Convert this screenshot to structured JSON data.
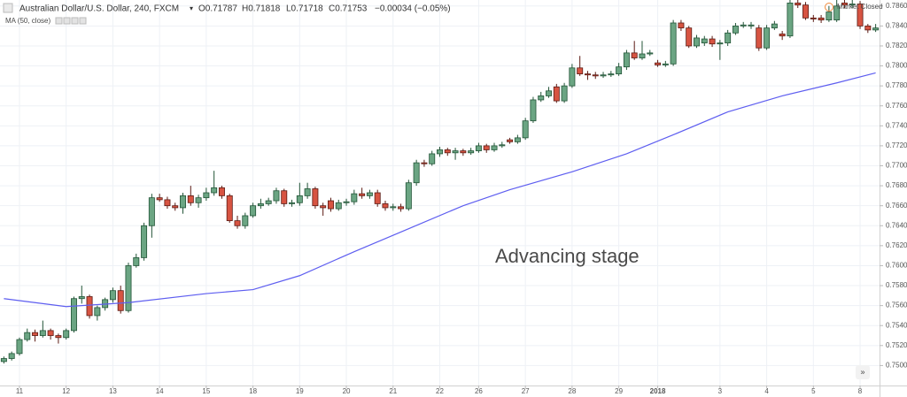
{
  "chart_data": {
    "type": "candlestick",
    "header": {
      "symbol": "Australian Dollar/U.S. Dollar, 240, FXCM",
      "open": "O0.71787",
      "high": "H0.71818",
      "low": "L0.71718",
      "close": "C0.71753",
      "change": "−0.00034 (−0.05%)",
      "indicator": "MA (50, close)",
      "status": "Market Closed"
    },
    "annotation": "Advancing stage",
    "up_color": "#6ba583",
    "up_border": "#225437",
    "down_color": "#d75442",
    "down_border": "#5b1a13",
    "categories": [
      null,
      null,
      "11",
      null,
      null,
      null,
      null,
      null,
      "12",
      null,
      null,
      null,
      null,
      null,
      "13",
      null,
      null,
      null,
      null,
      null,
      "14",
      null,
      null,
      null,
      null,
      null,
      "15",
      null,
      null,
      null,
      null,
      null,
      "18",
      null,
      null,
      null,
      null,
      null,
      "19",
      null,
      null,
      null,
      null,
      null,
      "20",
      null,
      null,
      null,
      null,
      null,
      "21",
      null,
      null,
      null,
      null,
      null,
      "22",
      null,
      null,
      null,
      null,
      "26",
      null,
      null,
      null,
      null,
      null,
      "27",
      null,
      null,
      null,
      null,
      null,
      "28",
      null,
      null,
      null,
      null,
      null,
      "29",
      null,
      null,
      null,
      null,
      "2018",
      null,
      null,
      null,
      null,
      null,
      null,
      null,
      "3",
      null,
      null,
      null,
      null,
      null,
      "4",
      null,
      null,
      null,
      null,
      null,
      "5",
      null,
      null,
      null,
      null,
      null,
      "8",
      null,
      null
    ],
    "open": [
      0.7504,
      0.7507,
      0.7512,
      0.7526,
      0.7533,
      0.753,
      0.7535,
      0.753,
      0.7528,
      0.7535,
      0.7567,
      0.7569,
      0.755,
      0.7558,
      0.7566,
      0.7575,
      0.7555,
      0.76,
      0.7608,
      0.764,
      0.7668,
      0.7666,
      0.766,
      0.7658,
      0.767,
      0.7663,
      0.7668,
      0.7673,
      0.7678,
      0.767,
      0.7645,
      0.764,
      0.765,
      0.766,
      0.7662,
      0.7665,
      0.7675,
      0.7662,
      0.7663,
      0.767,
      0.7677,
      0.766,
      0.7665,
      0.7657,
      0.7663,
      0.7664,
      0.7672,
      0.767,
      0.7673,
      0.7662,
      0.7658,
      0.7659,
      0.7657,
      0.7683,
      0.7703,
      0.7702,
      0.7712,
      0.7716,
      0.7713,
      0.7715,
      0.7713,
      0.7715,
      0.772,
      0.7716,
      0.772,
      0.7726,
      0.7724,
      0.7728,
      0.7745,
      0.7766,
      0.777,
      0.7779,
      0.7765,
      0.778,
      0.7798,
      0.7792,
      0.7791,
      0.779,
      0.7791,
      0.7792,
      0.7799,
      0.7813,
      0.7808,
      0.7812,
      0.7803,
      0.7801,
      0.7802,
      0.7843,
      0.7838,
      0.782,
      0.7823,
      0.7827,
      0.7822,
      0.7823,
      0.7833,
      0.784,
      0.784,
      0.7838,
      0.7818,
      0.7838,
      0.7832,
      0.783,
      0.7863,
      0.7861,
      0.7848,
      0.7848,
      0.7846,
      0.7846,
      0.7863,
      0.7861,
      0.7862,
      0.784,
      0.7836
    ],
    "high": [
      0.7509,
      0.7514,
      0.7528,
      0.7537,
      0.7536,
      0.7545,
      0.7537,
      0.7532,
      0.7537,
      0.7569,
      0.758,
      0.7571,
      0.756,
      0.7568,
      0.7578,
      0.758,
      0.7603,
      0.7612,
      0.7643,
      0.7672,
      0.7672,
      0.7669,
      0.7663,
      0.7673,
      0.768,
      0.7671,
      0.7678,
      0.7695,
      0.768,
      0.7672,
      0.765,
      0.7653,
      0.7663,
      0.7667,
      0.7668,
      0.7678,
      0.7677,
      0.7666,
      0.7683,
      0.7683,
      0.7679,
      0.7663,
      0.7668,
      0.7666,
      0.7667,
      0.7676,
      0.7678,
      0.7676,
      0.7676,
      0.7665,
      0.7662,
      0.7662,
      0.7686,
      0.7706,
      0.7706,
      0.7715,
      0.7719,
      0.7718,
      0.7718,
      0.7717,
      0.7718,
      0.7723,
      0.7722,
      0.7723,
      0.7724,
      0.7728,
      0.7731,
      0.7748,
      0.7769,
      0.7774,
      0.7779,
      0.7782,
      0.7783,
      0.7802,
      0.781,
      0.7795,
      0.7794,
      0.7794,
      0.7795,
      0.7803,
      0.7816,
      0.7825,
      0.7825,
      0.7816,
      0.7806,
      0.7805,
      0.7846,
      0.7846,
      0.784,
      0.7831,
      0.783,
      0.783,
      0.7826,
      0.7836,
      0.7843,
      0.7844,
      0.7844,
      0.7841,
      0.7841,
      0.7845,
      0.7835,
      0.7866,
      0.7866,
      0.7864,
      0.7851,
      0.7851,
      0.786,
      0.7866,
      0.7872,
      0.7866,
      0.7865,
      0.7842,
      0.7842
    ],
    "low": [
      0.7502,
      0.7505,
      0.751,
      0.7524,
      0.7524,
      0.7528,
      0.7526,
      0.7522,
      0.7526,
      0.7533,
      0.7562,
      0.7547,
      0.7545,
      0.7555,
      0.7563,
      0.7552,
      0.7553,
      0.7598,
      0.7605,
      0.7628,
      0.7664,
      0.7657,
      0.7655,
      0.7652,
      0.766,
      0.7658,
      0.7665,
      0.767,
      0.7667,
      0.7643,
      0.7637,
      0.7637,
      0.7648,
      0.7657,
      0.766,
      0.7662,
      0.7659,
      0.7659,
      0.766,
      0.7667,
      0.7657,
      0.765,
      0.7654,
      0.7655,
      0.766,
      0.7661,
      0.7667,
      0.7667,
      0.7659,
      0.7655,
      0.7655,
      0.7654,
      0.7655,
      0.768,
      0.7699,
      0.77,
      0.7709,
      0.771,
      0.7706,
      0.771,
      0.7711,
      0.7713,
      0.7713,
      0.7714,
      0.7718,
      0.7722,
      0.7722,
      0.7726,
      0.7743,
      0.7764,
      0.7768,
      0.7763,
      0.7763,
      0.7778,
      0.779,
      0.7786,
      0.7787,
      0.7788,
      0.7789,
      0.779,
      0.7796,
      0.7806,
      0.7806,
      0.781,
      0.7799,
      0.7799,
      0.78,
      0.7835,
      0.7818,
      0.7818,
      0.782,
      0.7819,
      0.7806,
      0.782,
      0.7831,
      0.7838,
      0.7837,
      0.7815,
      0.7816,
      0.7836,
      0.7826,
      0.7828,
      0.7858,
      0.7846,
      0.7844,
      0.7843,
      0.7844,
      0.7844,
      0.7858,
      0.7858,
      0.7837,
      0.7833,
      0.7834
    ],
    "close": [
      0.7507,
      0.7512,
      0.7526,
      0.7533,
      0.753,
      0.7535,
      0.753,
      0.7528,
      0.7535,
      0.7567,
      0.7569,
      0.755,
      0.7558,
      0.7566,
      0.7575,
      0.7555,
      0.76,
      0.7608,
      0.764,
      0.7668,
      0.7666,
      0.766,
      0.7658,
      0.767,
      0.7663,
      0.7668,
      0.7673,
      0.7678,
      0.767,
      0.7645,
      0.764,
      0.765,
      0.766,
      0.7662,
      0.7665,
      0.7675,
      0.7662,
      0.7663,
      0.767,
      0.7677,
      0.766,
      0.7658,
      0.7657,
      0.7663,
      0.7664,
      0.7672,
      0.767,
      0.7673,
      0.7662,
      0.7658,
      0.7659,
      0.7657,
      0.7683,
      0.7703,
      0.7702,
      0.7712,
      0.7716,
      0.7713,
      0.7715,
      0.7713,
      0.7715,
      0.772,
      0.7716,
      0.772,
      0.7721,
      0.7724,
      0.7728,
      0.7745,
      0.7766,
      0.777,
      0.7775,
      0.7765,
      0.778,
      0.7798,
      0.7792,
      0.7791,
      0.779,
      0.7791,
      0.7792,
      0.7799,
      0.7813,
      0.7808,
      0.7812,
      0.7813,
      0.7801,
      0.7802,
      0.7843,
      0.7838,
      0.782,
      0.7828,
      0.7827,
      0.7822,
      0.7823,
      0.7833,
      0.784,
      0.7841,
      0.7841,
      0.7818,
      0.7838,
      0.7842,
      0.783,
      0.7863,
      0.7861,
      0.7848,
      0.7847,
      0.7846,
      0.7854,
      0.786,
      0.7861,
      0.7862,
      0.784,
      0.7836,
      0.7838
    ],
    "ma": {
      "color": "#5e5ef0",
      "x": [
        0,
        8,
        16,
        26,
        32,
        38,
        45,
        52,
        59,
        65,
        73,
        80,
        86,
        93,
        100,
        107,
        112
      ],
      "values": [
        0.7567,
        0.7559,
        0.7563,
        0.7572,
        0.7576,
        0.759,
        0.7614,
        0.7637,
        0.766,
        0.7676,
        0.7694,
        0.7712,
        0.7731,
        0.7754,
        0.777,
        0.7783,
        0.7793
      ]
    },
    "ylim": [
      0.748,
      0.7866
    ],
    "yticks": [
      {
        "value": 0.75,
        "label": "0.75000"
      },
      {
        "value": 0.752,
        "label": "0.75200"
      },
      {
        "value": 0.754,
        "label": "0.75400"
      },
      {
        "value": 0.756,
        "label": "0.75600"
      },
      {
        "value": 0.758,
        "label": "0.75800"
      },
      {
        "value": 0.76,
        "label": "0.76000"
      },
      {
        "value": 0.762,
        "label": "0.76200"
      },
      {
        "value": 0.764,
        "label": "0.76400"
      },
      {
        "value": 0.766,
        "label": "0.76600"
      },
      {
        "value": 0.768,
        "label": "0.76800"
      },
      {
        "value": 0.77,
        "label": "0.77000"
      },
      {
        "value": 0.772,
        "label": "0.77200"
      },
      {
        "value": 0.774,
        "label": "0.77400"
      },
      {
        "value": 0.776,
        "label": "0.77600"
      },
      {
        "value": 0.778,
        "label": "0.77800"
      },
      {
        "value": 0.78,
        "label": "0.78000"
      },
      {
        "value": 0.782,
        "label": "0.78200"
      },
      {
        "value": 0.784,
        "label": "0.78400"
      },
      {
        "value": 0.786,
        "label": "0.78600"
      }
    ],
    "grid": true
  }
}
